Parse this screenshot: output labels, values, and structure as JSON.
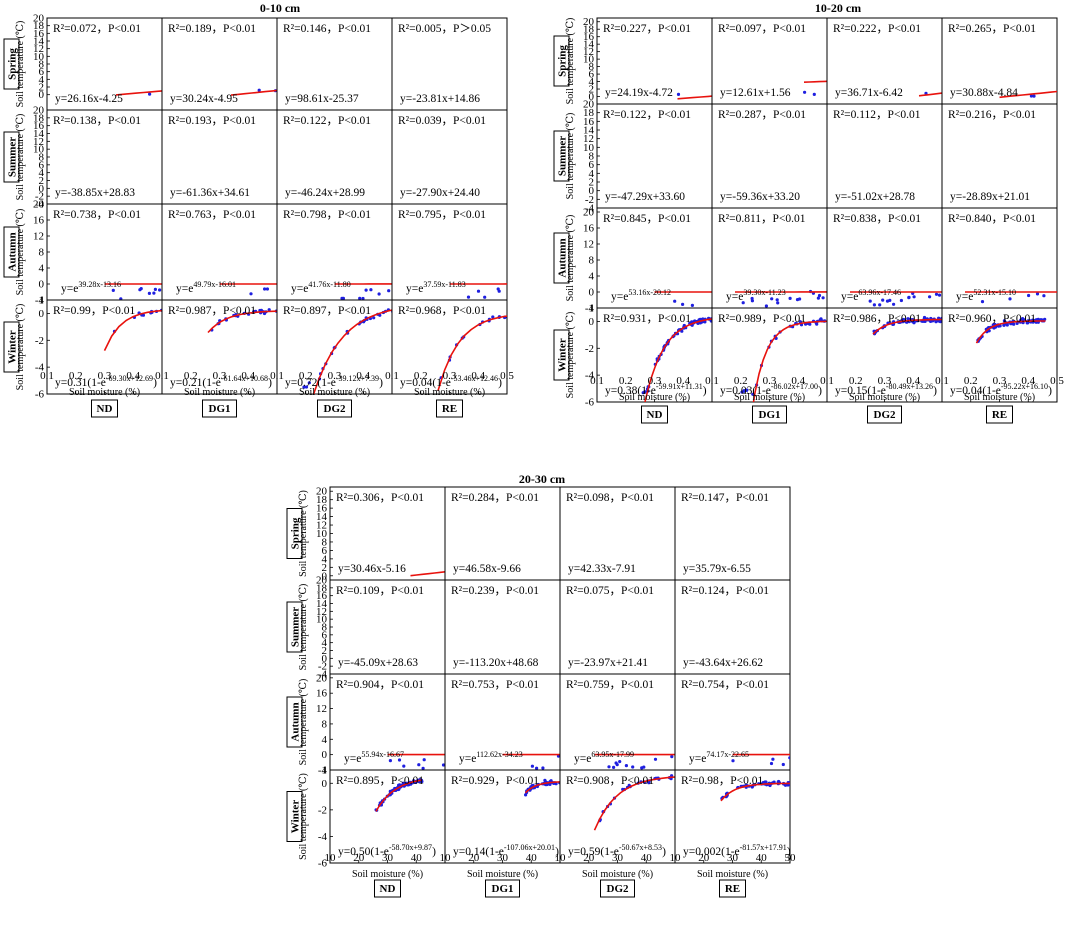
{
  "colors": {
    "points": "#1f1fe0",
    "fit_line": "#e8120d"
  },
  "chart_data": [
    {
      "type": "scatter",
      "title": "0-10 cm",
      "xlabel": "Soil moisture (%)",
      "ylabel": "Soil temperature (℃)",
      "treatments": [
        "ND",
        "DG1",
        "DG2",
        "RE"
      ],
      "xlim": [
        0.1,
        0.5
      ],
      "xticks": [
        "0.1",
        "0.2",
        "0.3",
        "0.4",
        "0.5"
      ],
      "rows": [
        {
          "season": "Spring",
          "ylim": [
            -4,
            20
          ],
          "yticks": [
            "20",
            "18",
            "16",
            "14",
            "12",
            "10",
            "8",
            "6",
            "4",
            "2",
            "0"
          ],
          "kind": "linear",
          "panels": [
            {
              "r2": "R²=0.072，P<0.01",
              "eq": "y=26.16x-4.25",
              "slope": 26.16,
              "intercept": -4.25,
              "xrange": [
                0.16,
                0.4
              ]
            },
            {
              "r2": "R²=0.189，P<0.01",
              "eq": "y=30.24x-4.95",
              "slope": 30.24,
              "intercept": -4.95,
              "xrange": [
                0.16,
                0.4
              ]
            },
            {
              "r2": "R²=0.146，P<0.01",
              "eq": "y=98.61x-25.37",
              "slope": 98.61,
              "intercept": -25.37,
              "xrange": [
                0.26,
                0.34
              ]
            },
            {
              "r2": "R²=0.005，P＞0.05",
              "eq": "y=-23.81x+14.86",
              "slope": -23.81,
              "intercept": 14.86,
              "xrange": [
                0.32,
                0.37
              ]
            }
          ]
        },
        {
          "season": "Summer",
          "ylim": [
            -4,
            20
          ],
          "yticks": [
            "20",
            "18",
            "16",
            "14",
            "12",
            "10",
            "8",
            "6",
            "4",
            "2",
            "0",
            "-2",
            "-4"
          ],
          "kind": "linear",
          "panels": [
            {
              "r2": "R²=0.138，P<0.01",
              "eq": "y=-38.85x+28.83",
              "slope": -38.85,
              "intercept": 28.83,
              "xrange": [
                0.34,
                0.4
              ]
            },
            {
              "r2": "R²=0.193，P<0.01",
              "eq": "y=-61.36x+34.61",
              "slope": -61.36,
              "intercept": 34.61,
              "xrange": [
                0.32,
                0.37
              ]
            },
            {
              "r2": "R²=0.122，P<0.01",
              "eq": "y=-46.24x+28.99",
              "slope": -46.24,
              "intercept": 28.99,
              "xrange": [
                0.28,
                0.34
              ]
            },
            {
              "r2": "R²=0.039，P<0.01",
              "eq": "y=-27.90x+24.40",
              "slope": -27.9,
              "intercept": 24.4,
              "xrange": [
                0.31,
                0.38
              ]
            }
          ]
        },
        {
          "season": "Autumn",
          "ylim": [
            -4,
            20
          ],
          "yticks": [
            "20",
            "16",
            "12",
            "8",
            "4",
            "0",
            "-4"
          ],
          "kind": "exp",
          "panels": [
            {
              "r2": "R²=0.738，P<0.01",
              "eq_base": "y=e",
              "eq_exp": "39.28x-13.16",
              "a": 39.28,
              "b": -13.16,
              "xrange": [
                0.15,
                0.4
              ]
            },
            {
              "r2": "R²=0.763，P<0.01",
              "eq_base": "y=e",
              "eq_exp": "49.79x-16.01",
              "a": 49.79,
              "b": -16.01,
              "xrange": [
                0.15,
                0.37
              ]
            },
            {
              "r2": "R²=0.798，P<0.01",
              "eq_base": "y=e",
              "eq_exp": "41.76x-11.80",
              "a": 41.76,
              "b": -11.8,
              "xrange": [
                0.15,
                0.35
              ]
            },
            {
              "r2": "R²=0.795，P<0.01",
              "eq_base": "y=e",
              "eq_exp": "37.59x-11.83",
              "a": 37.59,
              "b": -11.83,
              "xrange": [
                0.15,
                0.38
              ]
            }
          ]
        },
        {
          "season": "Winter",
          "ylim": [
            -6,
            1
          ],
          "yticks": [
            "1",
            "0",
            "-2",
            "-4",
            "-6"
          ],
          "kind": "sat",
          "panels": [
            {
              "r2": "R²=0.99，P<0.01",
              "eq_base": "y=0.31(1-e",
              "eq_exp": "-69.30x+12.69",
              "eq_end": ")",
              "a": 0.31,
              "k": -69.3,
              "c": 12.69,
              "xrange": [
                0.15,
                0.4
              ]
            },
            {
              "r2": "R²=0.987，P<0.01",
              "eq_base": "y=0.21(1-e",
              "eq_exp": "-61.64x+10.68",
              "eq_end": ")",
              "a": 0.21,
              "k": -61.64,
              "c": 10.68,
              "xrange": [
                0.14,
                0.3
              ]
            },
            {
              "r2": "R²=0.897，P<0.01",
              "eq_base": "y=0.72(1-e",
              "eq_exp": "-39.12x+7.39",
              "eq_end": ")",
              "a": 0.72,
              "k": -39.12,
              "c": 7.39,
              "xrange": [
                0.12,
                0.34
              ]
            },
            {
              "r2": "R²=0.968，P<0.01",
              "eq_base": "y=0.04(1-e",
              "eq_exp": "-53.46x+12.46",
              "eq_end": ")",
              "a": 0.04,
              "k": -53.46,
              "c": 12.46,
              "xrange": [
                0.14,
                0.37
              ]
            }
          ]
        }
      ]
    },
    {
      "type": "scatter",
      "title": "10-20 cm",
      "xlabel": "Soil moisture (%)",
      "ylabel": "Soil temperature (℃)",
      "treatments": [
        "ND",
        "DG1",
        "DG2",
        "RE"
      ],
      "xlim": [
        0.1,
        0.5
      ],
      "xticks": [
        "0.1",
        "0.2",
        "0.3",
        "0.4",
        "0.5"
      ],
      "rows": [
        {
          "season": "Spring",
          "ylim": [
            -2,
            21
          ],
          "yticks": [
            "20",
            "18",
            "16",
            "14",
            "12",
            "10",
            "8",
            "6",
            "4",
            "2",
            "0"
          ],
          "kind": "linear",
          "panels": [
            {
              "r2": "R²=0.227，P<0.01",
              "eq": "y=24.19x-4.72",
              "slope": 24.19,
              "intercept": -4.72,
              "xrange": [
                0.17,
                0.44
              ]
            },
            {
              "r2": "R²=0.097，P<0.01",
              "eq": "y=12.61x+1.56",
              "slope": 12.61,
              "intercept": 1.56,
              "xrange": [
                0.18,
                0.36
              ]
            },
            {
              "r2": "R²=0.222，P<0.01",
              "eq": "y=36.71x-6.42",
              "slope": 36.71,
              "intercept": -6.42,
              "xrange": [
                0.18,
                0.32
              ]
            },
            {
              "r2": "R²=0.265，P<0.01",
              "eq": "y=30.88x-4.84",
              "slope": 30.88,
              "intercept": -4.84,
              "xrange": [
                0.15,
                0.35
              ]
            }
          ]
        },
        {
          "season": "Summer",
          "ylim": [
            -4,
            20
          ],
          "yticks": [
            "20",
            "18",
            "16",
            "14",
            "12",
            "10",
            "8",
            "6",
            "4",
            "2",
            "0",
            "-2",
            "-4"
          ],
          "kind": "linear",
          "panels": [
            {
              "r2": "R²=0.122，P<0.01",
              "eq": "y=-47.29x+33.60",
              "slope": -47.29,
              "intercept": 33.6,
              "xrange": [
                0.38,
                0.44
              ]
            },
            {
              "r2": "R²=0.287，P<0.01",
              "eq": "y=-59.36x+33.20",
              "slope": -59.36,
              "intercept": 33.2,
              "xrange": [
                0.28,
                0.36
              ]
            },
            {
              "r2": "R²=0.112，P<0.01",
              "eq": "y=-51.02x+28.78",
              "slope": -51.02,
              "intercept": 28.78,
              "xrange": [
                0.28,
                0.32
              ]
            },
            {
              "r2": "R²=0.216，P<0.01",
              "eq": "y=-28.89x+21.01",
              "slope": -28.89,
              "intercept": 21.01,
              "xrange": [
                0.26,
                0.36
              ]
            }
          ]
        },
        {
          "season": "Autumn",
          "ylim": [
            -4,
            21
          ],
          "yticks": [
            "20",
            "16",
            "12",
            "8",
            "4",
            "0",
            "-4"
          ],
          "kind": "exp",
          "panels": [
            {
              "r2": "R²=0.845，P<0.01",
              "eq_base": "y=e",
              "eq_exp": "53.16x-20.12",
              "a": 53.16,
              "b": -20.12,
              "xrange": [
                0.15,
                0.43
              ]
            },
            {
              "r2": "R²=0.811，P<0.01",
              "eq_base": "y=e",
              "eq_exp": "39.30x-11.23",
              "a": 39.3,
              "b": -11.23,
              "xrange": [
                0.12,
                0.35
              ]
            },
            {
              "r2": "R²=0.838，P<0.01",
              "eq_base": "y=e",
              "eq_exp": "63.96x-17.46",
              "a": 63.96,
              "b": -17.46,
              "xrange": [
                0.12,
                0.32
              ]
            },
            {
              "r2": "R²=0.840，P<0.01",
              "eq_base": "y=e",
              "eq_exp": "52.31x-15.10",
              "a": 52.31,
              "b": -15.1,
              "xrange": [
                0.12,
                0.34
              ]
            }
          ]
        },
        {
          "season": "Winter",
          "ylim": [
            -6,
            1
          ],
          "yticks": [
            "1",
            "0",
            "-2",
            "-4",
            "-6"
          ],
          "kind": "sat",
          "panels": [
            {
              "r2": "R²=0.931，P<0.01",
              "eq_base": "y=0.38(1-e",
              "eq_exp": "-59.91x+11.31",
              "eq_end": ")",
              "a": 0.38,
              "k": -59.91,
              "c": 11.31,
              "xrange": [
                0.14,
                0.2
              ]
            },
            {
              "r2": "R²=0.989，P<0.01",
              "eq_base": "y=0.03(1-e",
              "eq_exp": "-86.02x+17.00",
              "eq_end": ")",
              "a": 0.03,
              "k": -86.02,
              "c": 17.0,
              "xrange": [
                0.12,
                0.26
              ]
            },
            {
              "r2": "R²=0.986，P<0.01",
              "eq_base": "y=0.15(1-e",
              "eq_exp": "-80.49x+13.26",
              "eq_end": ")",
              "a": 0.15,
              "k": -80.49,
              "c": 13.26,
              "xrange": [
                0.14,
                0.2
              ]
            },
            {
              "r2": "R²=0.960，P<0.01",
              "eq_base": "y=0.04(1-e",
              "eq_exp": "-95.22x+16.10",
              "eq_end": ")",
              "a": 0.04,
              "k": -95.22,
              "c": 16.1,
              "xrange": [
                0.13,
                0.19
              ]
            }
          ]
        }
      ]
    },
    {
      "type": "scatter",
      "title": "20-30 cm",
      "xlabel": "Soil moisture (%)",
      "ylabel": "Soil temperature (℃)",
      "treatments": [
        "ND",
        "DG1",
        "DG2",
        "RE"
      ],
      "xlim": [
        10,
        50
      ],
      "xticks": [
        "10",
        "20",
        "30",
        "40",
        "50"
      ],
      "rows": [
        {
          "season": "Spring",
          "ylim": [
            -1,
            21
          ],
          "yticks": [
            "20",
            "18",
            "16",
            "14",
            "12",
            "10",
            "8",
            "6",
            "4",
            "2",
            "0"
          ],
          "kind": "linear",
          "panels": [
            {
              "r2": "R²=0.306，P<0.01",
              "eq": "y=30.46x-5.16",
              "slope": 30.46,
              "intercept": -5.16,
              "xrange": [
                0.17,
                0.38
              ],
              "pct": true
            },
            {
              "r2": "R²=0.284，P<0.01",
              "eq": "y=46.58x-9.66",
              "slope": 46.58,
              "intercept": -9.66,
              "xrange": [
                0.2,
                0.36
              ],
              "pct": true
            },
            {
              "r2": "R²=0.098，P<0.01",
              "eq": "y=42.33x-7.91",
              "slope": 42.33,
              "intercept": -7.91,
              "xrange": [
                0.2,
                0.33
              ],
              "pct": true
            },
            {
              "r2": "R²=0.147，P<0.01",
              "eq": "y=35.79x-6.55",
              "slope": 35.79,
              "intercept": -6.55,
              "xrange": [
                0.2,
                0.38
              ],
              "pct": true
            }
          ]
        },
        {
          "season": "Summer",
          "ylim": [
            -4,
            20
          ],
          "yticks": [
            "20",
            "18",
            "16",
            "14",
            "12",
            "10",
            "8",
            "6",
            "4",
            "2",
            "0",
            "-2",
            "-4"
          ],
          "kind": "linear",
          "panels": [
            {
              "r2": "R²=0.109，P<0.01",
              "eq": "y=-45.09x+28.63",
              "slope": -45.09,
              "intercept": 28.63,
              "xrange": [
                0.3,
                0.36
              ],
              "pct": true
            },
            {
              "r2": "R²=0.239，P<0.01",
              "eq": "y=-113.20x+48.68",
              "slope": -113.2,
              "intercept": 48.68,
              "xrange": [
                0.3,
                0.33
              ],
              "pct": true
            },
            {
              "r2": "R²=0.075，P<0.01",
              "eq": "y=-23.97x+21.41",
              "slope": -23.97,
              "intercept": 21.41,
              "xrange": [
                0.22,
                0.34
              ],
              "pct": true
            },
            {
              "r2": "R²=0.124，P<0.01",
              "eq": "y=-43.64x+26.62",
              "slope": -43.64,
              "intercept": 26.62,
              "xrange": [
                0.28,
                0.34
              ],
              "pct": true
            }
          ]
        },
        {
          "season": "Autumn",
          "ylim": [
            -4,
            21
          ],
          "yticks": [
            "20",
            "16",
            "12",
            "8",
            "4",
            "0",
            "-4"
          ],
          "kind": "exp",
          "panels": [
            {
              "r2": "R²=0.904，P<0.01",
              "eq_base": "y=e",
              "eq_exp": "55.94x-16.67",
              "a": 55.94,
              "b": -16.67,
              "xrange": [
                0.15,
                0.35
              ],
              "pct": true
            },
            {
              "r2": "R²=0.753，P<0.01",
              "eq_base": "y=e",
              "eq_exp": "112.62x-34.23",
              "a": 112.62,
              "b": -34.23,
              "xrange": [
                0.15,
                0.32
              ],
              "pct": true
            },
            {
              "r2": "R²=0.759，P<0.01",
              "eq_base": "y=e",
              "eq_exp": "63.95x-17.99",
              "a": 63.95,
              "b": -17.99,
              "xrange": [
                0.13,
                0.32
              ],
              "pct": true
            },
            {
              "r2": "R²=0.754，P<0.01",
              "eq_base": "y=e",
              "eq_exp": "74.17x-22.65",
              "a": 74.17,
              "b": -22.65,
              "xrange": [
                0.15,
                0.34
              ],
              "pct": true
            }
          ]
        },
        {
          "season": "Winter",
          "ylim": [
            -6,
            1
          ],
          "yticks": [
            "1",
            "0",
            "-2",
            "-4",
            "-6"
          ],
          "kind": "sat",
          "panels": [
            {
              "r2": "R²=0.895，P<0.01",
              "eq_base": "y=0.50(1-e",
              "eq_exp": "-58.70x+9.87",
              "eq_end": ")",
              "a": 0.5,
              "k": -58.7,
              "c": 9.87,
              "xrange": [
                0.14,
                0.18
              ],
              "pct": true
            },
            {
              "r2": "R²=0.929，P<0.01",
              "eq_base": "y=0.14(1-e",
              "eq_exp": "-107.06x+20.01",
              "eq_end": ")",
              "a": 0.14,
              "k": -107.06,
              "c": 20.01,
              "xrange": [
                0.17,
                0.21
              ],
              "pct": true
            },
            {
              "r2": "R²=0.908，P<0.01",
              "eq_base": "y=0.59(1-e",
              "eq_exp": "-50.67x+8.53",
              "eq_end": ")",
              "a": 0.59,
              "k": -50.67,
              "c": 8.53,
              "xrange": [
                0.13,
                0.31
              ],
              "pct": true
            },
            {
              "r2": "R²=0.98，P<0.01",
              "eq_base": "y=0.002(1-e",
              "eq_exp": "-81.57x+17.91",
              "eq_end": ")",
              "a": 0.002,
              "k": -81.57,
              "c": 17.91,
              "xrange": [
                0.14,
                0.22
              ],
              "pct": true
            }
          ]
        }
      ]
    }
  ]
}
